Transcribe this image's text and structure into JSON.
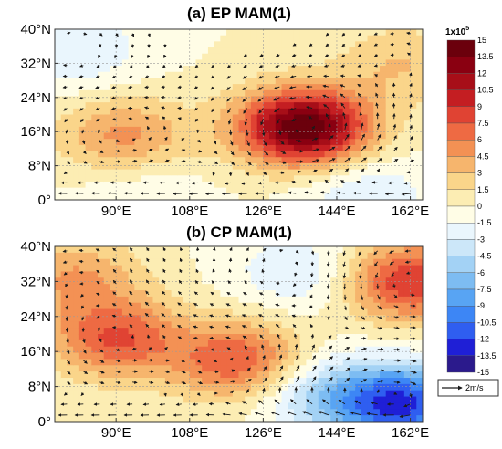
{
  "colors": {
    "scale": [
      "#2b1a8c",
      "#1f1fd6",
      "#2f5ef0",
      "#3d86f5",
      "#58a4f3",
      "#7dbcf2",
      "#a3d2f5",
      "#cce7f9",
      "#eaf6fd",
      "#fffde6",
      "#fcedb3",
      "#fad58a",
      "#f6b56d",
      "#f39154",
      "#ee6a43",
      "#e04333",
      "#c41e22",
      "#a70e18",
      "#8a0011",
      "#6b000c"
    ],
    "vector": "#1a1a1a",
    "border": "#333333",
    "grid": "#9a9a9a"
  },
  "chart_data": [
    {
      "type": "heatmap",
      "title": "(a) EP MAM(1)",
      "xlabel": "",
      "ylabel": "",
      "x_ticks": [
        "90°E",
        "108°E",
        "126°E",
        "144°E",
        "162°E"
      ],
      "y_ticks": [
        "0°",
        "8°N",
        "16°N",
        "24°N",
        "32°N",
        "40°N"
      ],
      "xlim": [
        75,
        165
      ],
      "ylim": [
        0,
        40
      ],
      "grid": true,
      "overlay": "wind vectors",
      "field_centers": [
        {
          "lon": 136,
          "lat": 17,
          "value": 15
        },
        {
          "lon": 92,
          "lat": 15,
          "value": 5
        },
        {
          "lon": 160,
          "lat": 32,
          "value": 3
        },
        {
          "lon": 80,
          "lat": 35,
          "value": -3
        },
        {
          "lon": 150,
          "lat": 2,
          "value": -3
        },
        {
          "lon": 96,
          "lat": 2,
          "value": -1.5
        }
      ]
    },
    {
      "type": "heatmap",
      "title": "(b) CP MAM(1)",
      "xlabel": "",
      "ylabel": "",
      "x_ticks": [
        "90°E",
        "108°E",
        "126°E",
        "144°E",
        "162°E"
      ],
      "y_ticks": [
        "0°",
        "8°N",
        "16°N",
        "24°N",
        "32°N",
        "40°N"
      ],
      "xlim": [
        75,
        165
      ],
      "ylim": [
        0,
        40
      ],
      "grid": true,
      "overlay": "wind vectors",
      "field_centers": [
        {
          "lon": 90,
          "lat": 19,
          "value": 7.5
        },
        {
          "lon": 120,
          "lat": 14,
          "value": 7.5
        },
        {
          "lon": 162,
          "lat": 32,
          "value": 9
        },
        {
          "lon": 80,
          "lat": 33,
          "value": 4.5
        },
        {
          "lon": 135,
          "lat": 34,
          "value": -3
        },
        {
          "lon": 160,
          "lat": 4,
          "value": -12
        },
        {
          "lon": 140,
          "lat": 6,
          "value": -4.5
        }
      ]
    }
  ],
  "colorbar": {
    "unit_label": "1x10",
    "unit_exponent": "5",
    "ticks": [
      "15",
      "13.5",
      "12",
      "10.5",
      "9",
      "7.5",
      "6",
      "4.5",
      "3",
      "1.5",
      "0",
      "-1.5",
      "-3",
      "-4.5",
      "-6",
      "-7.5",
      "-9",
      "-10.5",
      "-12",
      "-13.5",
      "-15"
    ],
    "vmin": -15,
    "vmax": 15
  },
  "reference_vector": {
    "label": "2m/s"
  }
}
